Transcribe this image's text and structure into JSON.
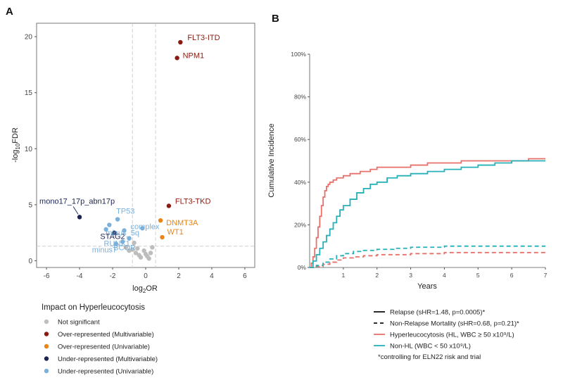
{
  "colors": {
    "not_significant": "#bdbdbd",
    "over_multi": "#8b1a10",
    "over_uni": "#e7851b",
    "under_multi": "#1c2552",
    "under_uni": "#7ab0da",
    "hl": "#e8706b",
    "nonhl": "#26b0b8"
  },
  "chart_data": [
    {
      "type": "scatter",
      "panel": "A",
      "xlabel_main": "log",
      "xlabel_sub": "2",
      "xlabel_tail": "OR",
      "ylabel_main": "-log",
      "ylabel_sub": "10",
      "ylabel_tail": "FDR",
      "xlim": [
        -6.6,
        6.6
      ],
      "ylim": [
        -0.6,
        21.2
      ],
      "xticks": [
        -6,
        -4,
        -2,
        0,
        2,
        4,
        6
      ],
      "yticks": [
        0,
        5,
        10,
        15,
        20
      ],
      "vlines": [
        -0.8,
        0.6
      ],
      "hline": 1.3,
      "grid": false,
      "legend": {
        "title": "Impact on Hyperleucocytosis",
        "position": "bottom",
        "entries": [
          {
            "label": "Not significant",
            "category": "not_significant"
          },
          {
            "label": "Over-represented (Multivariable)",
            "category": "over_multi"
          },
          {
            "label": "Over-represented (Univariable)",
            "category": "over_uni"
          },
          {
            "label": "Under-represented (Multivariable)",
            "category": "under_multi"
          },
          {
            "label": "Under-represented (Univariable)",
            "category": "under_uni"
          }
        ]
      },
      "points": [
        {
          "label": "FLT3-ITD",
          "x": 2.1,
          "y": 19.5,
          "category": "over_multi"
        },
        {
          "label": "NPM1",
          "x": 1.9,
          "y": 18.1,
          "category": "over_multi"
        },
        {
          "label": "FLT3-TKD",
          "x": 1.4,
          "y": 4.9,
          "category": "over_multi"
        },
        {
          "label": "DNMT3A",
          "x": 0.9,
          "y": 3.6,
          "category": "over_uni"
        },
        {
          "label": "WT1",
          "x": 1.0,
          "y": 2.1,
          "category": "over_uni"
        },
        {
          "label": "mono17_17p_abn17p",
          "x": -4.0,
          "y": 3.9,
          "category": "under_multi"
        },
        {
          "label": "STAG2",
          "x": -1.9,
          "y": 2.5,
          "category": "under_multi"
        },
        {
          "label": "TP53",
          "x": -1.7,
          "y": 3.7,
          "category": "under_uni"
        },
        {
          "label": "complex",
          "x": -1.3,
          "y": 2.7,
          "category": "under_uni"
        },
        {
          "label": "minus_5q",
          "x": -0.2,
          "y": 2.9,
          "category": "under_uni"
        },
        {
          "label": "RUNX1",
          "x": -1.0,
          "y": 2.0,
          "category": "under_uni"
        },
        {
          "label": "BCOR",
          "x": -1.4,
          "y": 1.7,
          "category": "under_uni"
        },
        {
          "label": "minus7",
          "x": -1.8,
          "y": 1.5,
          "category": "under_uni"
        },
        {
          "label": "",
          "x": -2.2,
          "y": 3.2,
          "category": "under_uni"
        },
        {
          "label": "",
          "x": -2.4,
          "y": 2.8,
          "category": "under_uni"
        },
        {
          "label": "",
          "x": -1.2,
          "y": 1.2,
          "category": "not_significant"
        },
        {
          "label": "",
          "x": -1.0,
          "y": 0.9,
          "category": "not_significant"
        },
        {
          "label": "",
          "x": -0.8,
          "y": 1.0,
          "category": "not_significant"
        },
        {
          "label": "",
          "x": -0.6,
          "y": 0.7,
          "category": "not_significant"
        },
        {
          "label": "",
          "x": -0.5,
          "y": 1.1,
          "category": "not_significant"
        },
        {
          "label": "",
          "x": -0.4,
          "y": 0.5,
          "category": "not_significant"
        },
        {
          "label": "",
          "x": -0.3,
          "y": 0.3,
          "category": "not_significant"
        },
        {
          "label": "",
          "x": -0.1,
          "y": 0.9,
          "category": "not_significant"
        },
        {
          "label": "",
          "x": 0.0,
          "y": 0.6,
          "category": "not_significant"
        },
        {
          "label": "",
          "x": 0.2,
          "y": 0.2,
          "category": "not_significant"
        },
        {
          "label": "",
          "x": 0.3,
          "y": 0.7,
          "category": "not_significant"
        },
        {
          "label": "",
          "x": 0.4,
          "y": 1.2,
          "category": "not_significant"
        },
        {
          "label": "",
          "x": -0.7,
          "y": 1.6,
          "category": "not_significant"
        },
        {
          "label": "",
          "x": 0.1,
          "y": 0.4,
          "category": "not_significant"
        }
      ]
    },
    {
      "type": "line",
      "panel": "B",
      "xlabel": "Years",
      "ylabel": "Cumulative Incidence",
      "xlim": [
        0,
        7
      ],
      "ylim": [
        0,
        100
      ],
      "xticks": [
        1,
        2,
        3,
        4,
        5,
        6,
        7
      ],
      "yticks": [
        "0%",
        "20%",
        "40%",
        "60%",
        "80%",
        "100%"
      ],
      "ytick_values": [
        0,
        20,
        40,
        60,
        80,
        100
      ],
      "grid": false,
      "series": [
        {
          "group": "HL",
          "endpoint": "relapse",
          "color": "hl",
          "dash": false,
          "x": [
            0,
            0.05,
            0.1,
            0.15,
            0.2,
            0.25,
            0.3,
            0.35,
            0.4,
            0.45,
            0.5,
            0.55,
            0.6,
            0.7,
            0.8,
            1.0,
            1.2,
            1.5,
            1.8,
            2.0,
            2.5,
            3.0,
            3.5,
            4.0,
            4.5,
            5.0,
            5.5,
            6.0,
            6.5,
            7.0
          ],
          "y": [
            0,
            2,
            5,
            9,
            14,
            19,
            24,
            29,
            33,
            36,
            38,
            39,
            40,
            41,
            42,
            43,
            44,
            45,
            46,
            47,
            47,
            48,
            49,
            49,
            50,
            50,
            50,
            50,
            51,
            51
          ]
        },
        {
          "group": "Non-HL",
          "endpoint": "relapse",
          "color": "nonhl",
          "dash": false,
          "x": [
            0,
            0.1,
            0.2,
            0.3,
            0.4,
            0.5,
            0.6,
            0.7,
            0.8,
            0.9,
            1.0,
            1.2,
            1.4,
            1.6,
            1.8,
            2.0,
            2.3,
            2.6,
            3.0,
            3.5,
            4.0,
            4.5,
            5.0,
            5.5,
            6.0,
            6.5,
            7.0
          ],
          "y": [
            0,
            3,
            6,
            9,
            12,
            15,
            18,
            21,
            24,
            27,
            29,
            32,
            35,
            37,
            39,
            40,
            42,
            43,
            44,
            45,
            46,
            47,
            48,
            49,
            50,
            50,
            50
          ]
        },
        {
          "group": "HL",
          "endpoint": "non-relapse mortality",
          "color": "hl",
          "dash": true,
          "x": [
            0,
            0.2,
            0.4,
            0.6,
            0.8,
            1.0,
            1.3,
            1.6,
            2.0,
            2.5,
            3.0,
            4.0,
            5.0,
            6.0,
            7.0
          ],
          "y": [
            0,
            0.5,
            1.5,
            2.5,
            3.5,
            4.5,
            5,
            5.5,
            6,
            6,
            6.5,
            7,
            7,
            7,
            7
          ]
        },
        {
          "group": "Non-HL",
          "endpoint": "non-relapse mortality",
          "color": "nonhl",
          "dash": true,
          "x": [
            0,
            0.2,
            0.4,
            0.6,
            0.8,
            1.0,
            1.3,
            1.6,
            2.0,
            2.5,
            3.0,
            4.0,
            5.0,
            6.0,
            7.0
          ],
          "y": [
            0,
            1,
            2.5,
            4,
            5.5,
            6.5,
            7.5,
            8,
            8.5,
            9,
            9.5,
            10,
            10,
            10,
            10
          ]
        }
      ],
      "legend": {
        "position": "bottom",
        "entries": [
          {
            "label": "Relapse (sHR=1.48, p=0.0005)*",
            "style": "solid",
            "color": "#111111"
          },
          {
            "label": "Non-Relapse Mortality (sHR=0.68, p=0.21)*",
            "style": "dashed",
            "color": "#111111"
          },
          {
            "label": "Hyperleucocytosis (HL, WBC ≥ 50 x10⁹/L)",
            "style": "solid",
            "color": "hl"
          },
          {
            "label": "Non-HL (WBC < 50 x10⁹/L)",
            "style": "solid",
            "color": "nonhl"
          }
        ],
        "footnote": "*controlling for ELN22 risk and trial"
      }
    }
  ]
}
